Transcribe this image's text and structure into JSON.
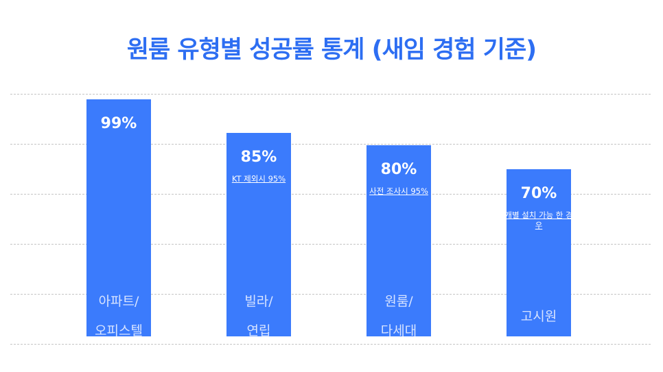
{
  "chart_data": {
    "type": "bar",
    "title": "원룸 유형별 성공률 통계 (새임 경험 기준)",
    "categories": [
      "아파트/\n오피스텔",
      "빌라/\n연립",
      "원룸/\n다세대",
      "고시원"
    ],
    "values": [
      99,
      85,
      80,
      70
    ],
    "value_labels": [
      "99%",
      "85%",
      "80%",
      "70%"
    ],
    "notes": [
      null,
      "KT 제외시 95%",
      "사전 조사시 95%",
      "개별 설치 가능 한 경우"
    ],
    "color": "#3b7bfc",
    "ylim": [
      -15,
      100
    ]
  }
}
